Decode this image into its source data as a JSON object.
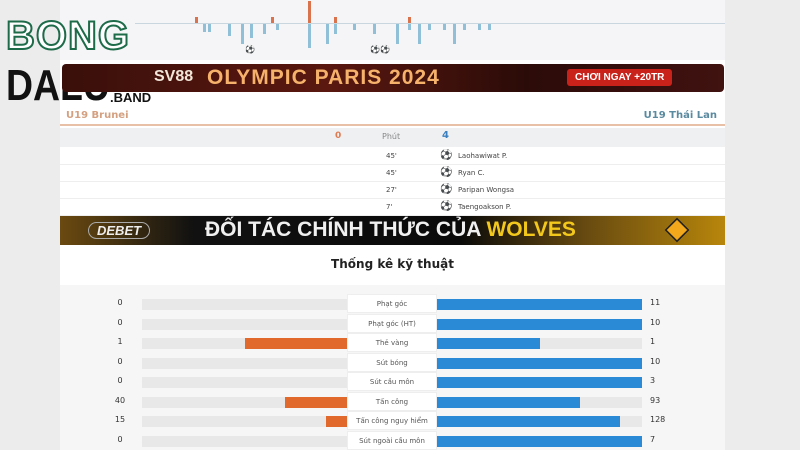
{
  "logo": {
    "line1": "BONG",
    "line2": "DALU",
    "suffix": ".BAND"
  },
  "banner_top": {
    "brand": "SV88",
    "headline": "OLYMPIC PARIS 2024",
    "cta": "CHƠI NGAY +20TR"
  },
  "match": {
    "home_team": "U19 Brunei",
    "away_team": "U19 Thái Lan",
    "home_score": "0",
    "away_score": "4",
    "minute_label": "Phút",
    "goals": [
      {
        "minute": "45'",
        "player": "Laohawiwat P."
      },
      {
        "minute": "45'",
        "player": "Ryan C."
      },
      {
        "minute": "27'",
        "player": "Paripan Wongsa"
      },
      {
        "minute": "7'",
        "player": "Taengoakson P."
      }
    ]
  },
  "banner_mid": {
    "brand": "DEBET",
    "headline": "ĐỐI TÁC CHÍNH THỨC CỦA",
    "highlight": "WOLVES"
  },
  "stats": {
    "title": "Thống kê kỹ thuật",
    "colors": {
      "home": "#e2692c",
      "away": "#2a8ad6"
    },
    "rows": [
      {
        "label": "Phạt góc",
        "home": 0,
        "away": 11
      },
      {
        "label": "Phạt góc (HT)",
        "home": 0,
        "away": 10
      },
      {
        "label": "Thẻ vàng",
        "home": 1,
        "away": 1
      },
      {
        "label": "Sút bóng",
        "home": 0,
        "away": 10
      },
      {
        "label": "Sút cầu môn",
        "home": 0,
        "away": 3
      },
      {
        "label": "Tấn công",
        "home": 40,
        "away": 93
      },
      {
        "label": "Tấn công nguy hiểm",
        "home": 15,
        "away": 128
      },
      {
        "label": "Sút ngoài cầu môn",
        "home": 0,
        "away": 7
      }
    ]
  }
}
